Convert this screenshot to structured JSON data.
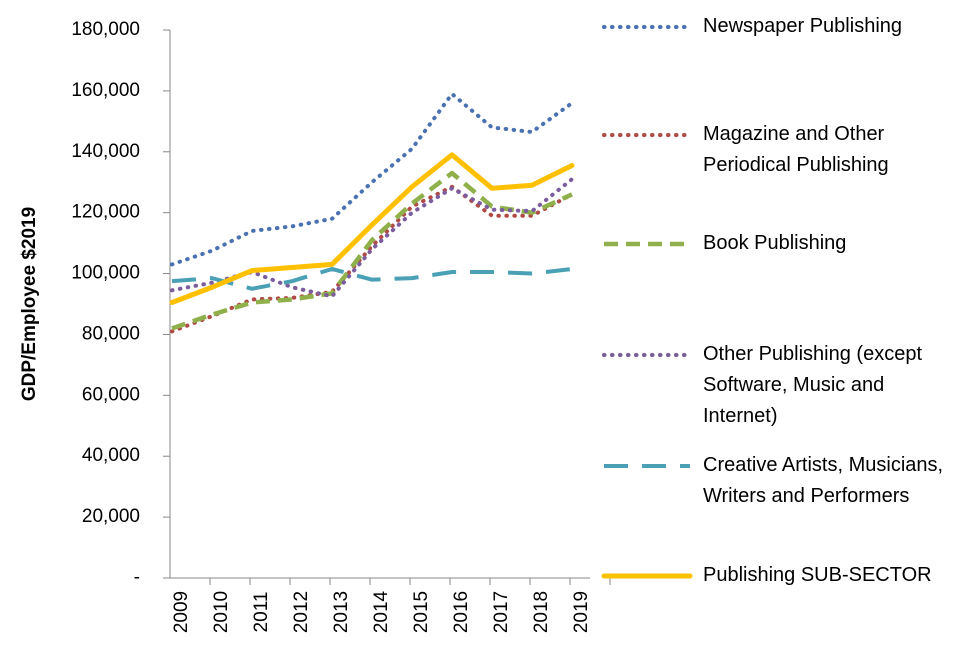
{
  "chart_data": {
    "type": "line",
    "y_label": "GDP/Employee $2019",
    "categories": [
      "2009",
      "2010",
      "2011",
      "2012",
      "2013",
      "2014",
      "2015",
      "2016",
      "2017",
      "2018",
      "2019"
    ],
    "series": [
      {
        "name": "Newspaper Publishing",
        "color": "#4a72b0",
        "style": "dotted",
        "values": [
          103000,
          107500,
          114000,
          115500,
          118000,
          130000,
          141000,
          159000,
          148000,
          146500,
          156000
        ]
      },
      {
        "name": "Magazine and Other Periodical Publishing",
        "color": "#b04a45",
        "style": "dotted",
        "values": [
          81000,
          86000,
          91500,
          92000,
          94000,
          109000,
          122000,
          128500,
          119000,
          119000,
          126000
        ]
      },
      {
        "name": "Book Publishing",
        "color": "#8fb04a",
        "style": "dashed",
        "values": [
          82000,
          86500,
          90500,
          91500,
          93500,
          111000,
          123000,
          133000,
          122000,
          120000,
          126000
        ]
      },
      {
        "name": "Other Publishing (except Software, Music and Internet)",
        "color": "#7b5c9e",
        "style": "dotted",
        "values": [
          94500,
          97000,
          100500,
          95500,
          92500,
          108000,
          120000,
          128000,
          121000,
          120500,
          131000
        ]
      },
      {
        "name": "Creative Artists, Musicians, Writers and Performers",
        "color": "#4aa0b5",
        "style": "longdash",
        "values": [
          97500,
          98500,
          95000,
          97500,
          101500,
          98000,
          98500,
          100500,
          100500,
          100000,
          101500
        ]
      },
      {
        "name": "Publishing SUB-SECTOR",
        "color": "#ffc000",
        "style": "solid",
        "values": [
          90500,
          95500,
          101000,
          102000,
          103000,
          116000,
          128500,
          139000,
          128000,
          129000,
          135500
        ]
      }
    ],
    "ylim": [
      0,
      180000
    ],
    "yticks": [
      {
        "value": 0,
        "label": "-"
      },
      {
        "value": 20000,
        "label": "20,000"
      },
      {
        "value": 40000,
        "label": "40,000"
      },
      {
        "value": 60000,
        "label": "60,000"
      },
      {
        "value": 80000,
        "label": "80,000"
      },
      {
        "value": 100000,
        "label": "100,000"
      },
      {
        "value": 120000,
        "label": "120,000"
      },
      {
        "value": 140000,
        "label": "140,000"
      },
      {
        "value": 160000,
        "label": "160,000"
      },
      {
        "value": 180000,
        "label": "180,000"
      }
    ],
    "grid": false,
    "legend": "right"
  }
}
